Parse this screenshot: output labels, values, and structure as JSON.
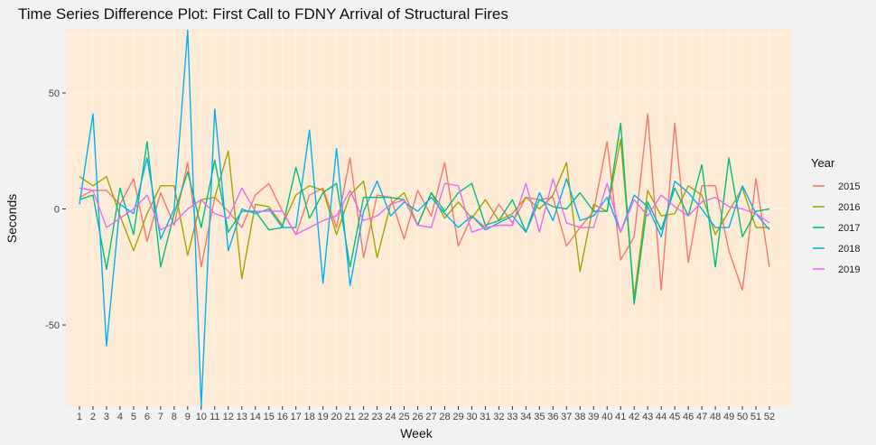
{
  "chart_data": {
    "type": "line",
    "title": "Time Series Difference Plot: First Call to FDNY Arrival of Structural Fires",
    "xlabel": "Week",
    "ylabel": "Seconds",
    "x": [
      1,
      2,
      3,
      4,
      5,
      6,
      7,
      8,
      9,
      10,
      11,
      12,
      13,
      14,
      15,
      16,
      17,
      18,
      19,
      20,
      21,
      22,
      23,
      24,
      25,
      26,
      27,
      28,
      29,
      30,
      31,
      32,
      33,
      34,
      35,
      36,
      37,
      38,
      39,
      40,
      41,
      42,
      43,
      44,
      45,
      46,
      47,
      48,
      49,
      50,
      51,
      52
    ],
    "xlim": [
      0,
      53.6
    ],
    "ylim": [
      -85,
      78
    ],
    "y_ticks": [
      -50,
      0,
      50
    ],
    "legend_title": "Year",
    "legend_position": "right",
    "background": "#feebd5",
    "grid": "dotted white",
    "series": [
      {
        "name": "2015",
        "color": "#f8766d",
        "values": [
          5,
          8,
          8,
          2,
          13,
          -14,
          7,
          -7,
          20,
          -25,
          5,
          -1,
          -8,
          6,
          11,
          -1,
          -11,
          6,
          9,
          -8,
          22,
          -21,
          6,
          5,
          -13,
          8,
          -3,
          20,
          -16,
          -3,
          -8,
          2,
          -6,
          5,
          4,
          5,
          -16,
          -8,
          -1,
          29,
          -22,
          -12,
          41,
          -35,
          37,
          -23,
          10,
          10,
          -18,
          -35,
          13,
          -25
        ]
      },
      {
        "name": "2016",
        "color": "#a3a500",
        "values": [
          14,
          10,
          14,
          -3,
          -18,
          -2,
          10,
          10,
          -20,
          4,
          5,
          25,
          -30,
          2,
          1,
          -7,
          6,
          10,
          8,
          -11,
          6,
          12,
          -21,
          2,
          7,
          -7,
          7,
          -4,
          3,
          -4,
          4,
          -5,
          -2,
          5,
          0,
          6,
          20,
          -27,
          2,
          -1,
          30,
          -38,
          8,
          -3,
          -2,
          10,
          6,
          -11,
          -1,
          9,
          -8,
          -8
        ]
      },
      {
        "name": "2017",
        "color": "#00bf7d",
        "values": [
          4,
          6,
          -26,
          9,
          -11,
          29,
          -25,
          -2,
          16,
          -8,
          21,
          -10,
          -1,
          -1,
          -9,
          -8,
          18,
          -4,
          7,
          11,
          -25,
          5,
          5,
          5,
          4,
          -7,
          7,
          -1,
          7,
          11,
          -7,
          -5,
          4,
          -10,
          4,
          1,
          0,
          7,
          -1,
          -1,
          37,
          -41,
          3,
          -9,
          9,
          -3,
          19,
          -25,
          22,
          -12,
          -1,
          0
        ]
      },
      {
        "name": "2018",
        "color": "#00b0f6",
        "values": [
          2,
          41,
          -59,
          2,
          -2,
          22,
          -13,
          0,
          77,
          -85,
          43,
          -18,
          0,
          -2,
          0,
          -8,
          -8,
          34,
          -32,
          26,
          -33,
          -1,
          12,
          -3,
          3,
          -1,
          5,
          -2,
          -8,
          -3,
          -9,
          -6,
          -3,
          -10,
          7,
          -5,
          13,
          -5,
          -3,
          5,
          -10,
          6,
          1,
          -12,
          12,
          7,
          0,
          -8,
          -8,
          10,
          -2,
          -9
        ]
      },
      {
        "name": "2019",
        "color": "#e76bf3",
        "values": [
          9,
          8,
          -8,
          -4,
          0,
          6,
          -9,
          -6,
          0,
          4,
          -2,
          -4,
          9,
          -1,
          -1,
          -1,
          -11,
          -8,
          -5,
          -3,
          8,
          -5,
          -3,
          2,
          4,
          -7,
          -8,
          11,
          10,
          -10,
          -8,
          -7,
          -7,
          11,
          -10,
          13,
          -6,
          -8,
          -8,
          11,
          -10,
          4,
          -3,
          6,
          1,
          -3,
          3,
          5,
          1,
          0,
          -2,
          -6
        ]
      }
    ]
  }
}
